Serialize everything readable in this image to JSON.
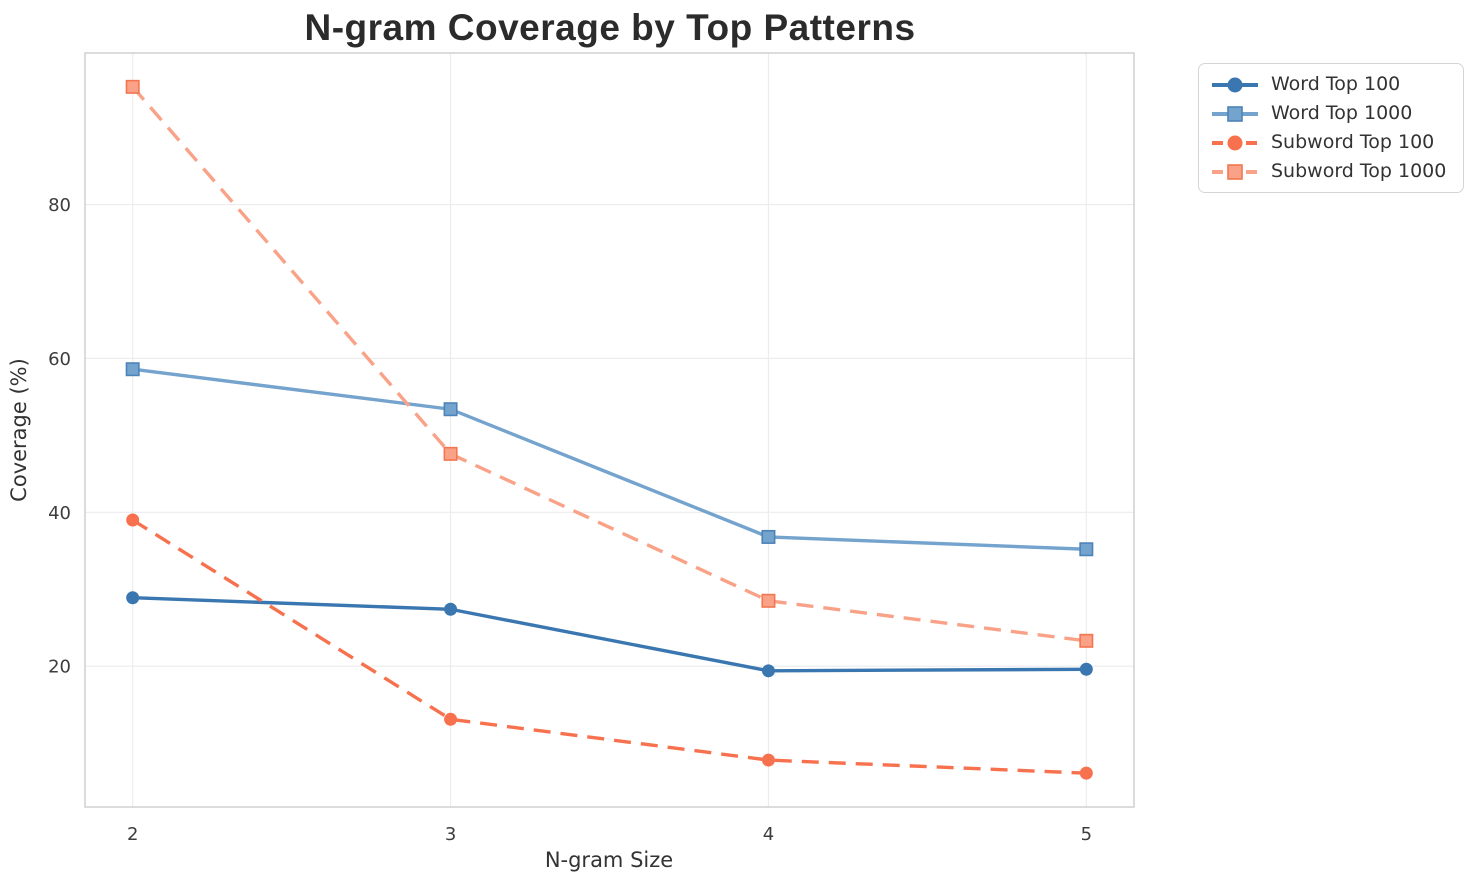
{
  "chart_data": {
    "type": "line",
    "title": "N-gram Coverage by Top Patterns",
    "xlabel": "N-gram Size",
    "ylabel": "Coverage (%)",
    "x": [
      2,
      3,
      4,
      5
    ],
    "xticks": [
      2,
      3,
      4,
      5
    ],
    "yticks": [
      20,
      40,
      60,
      80
    ],
    "xlim": [
      1.85,
      5.15
    ],
    "ylim": [
      1.7,
      99.7
    ],
    "grid": true,
    "legend": {
      "position": "outside-upper-right",
      "entries": [
        "Word Top 100",
        "Word Top 1000",
        "Subword Top 100",
        "Subword Top 1000"
      ]
    },
    "series": [
      {
        "name": "Word Top 100",
        "values": [
          28.9,
          27.4,
          19.4,
          19.6
        ],
        "color": "#3A77B0",
        "marker_edge": "#3A77B0",
        "marker": "circle",
        "line_style": "solid"
      },
      {
        "name": "Word Top 1000",
        "values": [
          58.6,
          53.4,
          36.8,
          35.2
        ],
        "color": "#74A3CE",
        "marker_edge": "#4C83B8",
        "marker": "square",
        "line_style": "solid"
      },
      {
        "name": "Subword Top 100",
        "values": [
          39.0,
          13.1,
          7.8,
          6.1
        ],
        "color": "#F8714E",
        "marker_edge": "#F8714E",
        "marker": "circle",
        "line_style": "dashed"
      },
      {
        "name": "Subword Top 1000",
        "values": [
          95.3,
          47.6,
          28.5,
          23.3
        ],
        "color": "#FAA288",
        "marker_edge": "#F3764F",
        "marker": "square",
        "line_style": "dashed"
      }
    ],
    "style": {
      "background": "#FFFFFF",
      "grid_color": "#ECECEC",
      "spine_color": "#CCCCCC",
      "tick_color": "#3D3D3D",
      "label_color": "#333333",
      "title_color": "#2B2B2B",
      "legend_border": "#D5D5D5"
    }
  }
}
